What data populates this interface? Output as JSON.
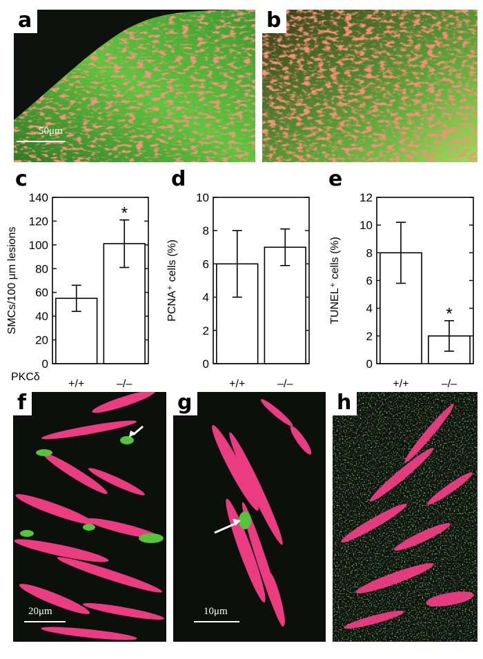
{
  "panels": {
    "a": {
      "label": "a",
      "scale_label": "50μm"
    },
    "b": {
      "label": "b"
    },
    "c": {
      "label": "c"
    },
    "d": {
      "label": "d"
    },
    "e": {
      "label": "e"
    },
    "f": {
      "label": "f",
      "scale_label": "20μm"
    },
    "g": {
      "label": "g",
      "scale_label": "10μm"
    },
    "h": {
      "label": "h"
    }
  },
  "row_label": "PKCδ",
  "colors": {
    "green": "#55c43a",
    "red": "#e2483e",
    "magenta": "#ff3f8c",
    "dark": "#0c110c"
  },
  "chart_data": [
    {
      "type": "bar",
      "panel": "c",
      "categories": [
        "+/+",
        "–/–"
      ],
      "values": [
        55,
        101
      ],
      "errors": [
        11,
        20
      ],
      "ylabel": "SMCs/100 μm lesions",
      "ylim": [
        0,
        140
      ],
      "yticks": [
        0,
        20,
        40,
        60,
        80,
        100,
        120,
        140
      ],
      "annotations": [
        {
          "category": "–/–",
          "text": "*"
        }
      ]
    },
    {
      "type": "bar",
      "panel": "d",
      "categories": [
        "+/+",
        "–/–"
      ],
      "values": [
        6,
        7
      ],
      "errors": [
        2,
        1.1
      ],
      "ylabel": "PCNA⁺ cells (%)",
      "ylim": [
        0,
        10
      ],
      "yticks": [
        0,
        2,
        4,
        6,
        8,
        10
      ],
      "annotations": []
    },
    {
      "type": "bar",
      "panel": "e",
      "categories": [
        "+/+",
        "–/–"
      ],
      "values": [
        8,
        2
      ],
      "errors": [
        2.2,
        1.1
      ],
      "ylabel": "TUNEL⁺ cells (%)",
      "ylim": [
        0,
        12
      ],
      "yticks": [
        0,
        2,
        4,
        6,
        8,
        10,
        12
      ],
      "annotations": [
        {
          "category": "–/–",
          "text": "*"
        }
      ]
    }
  ]
}
